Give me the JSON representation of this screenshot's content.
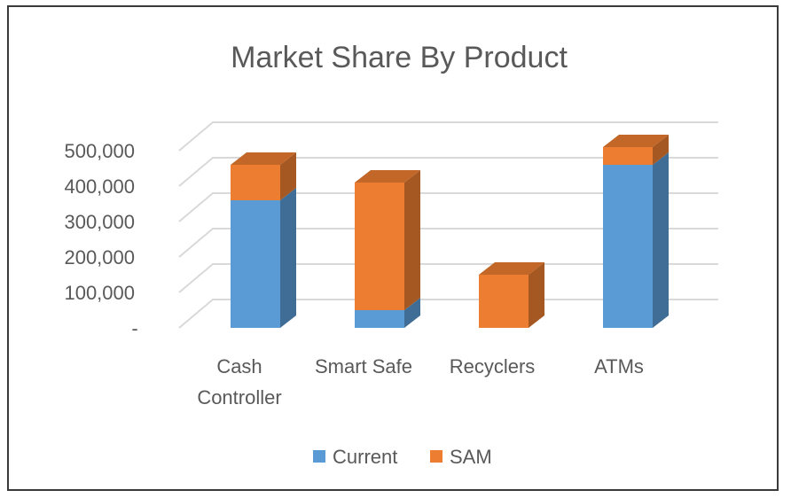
{
  "chart_data": {
    "type": "bar",
    "stacked": true,
    "three_d": true,
    "title": "Market Share By Product",
    "xlabel": "",
    "ylabel": "",
    "categories": [
      [
        "Cash",
        "Controller"
      ],
      [
        "Smart Safe"
      ],
      [
        "Recyclers"
      ],
      [
        "ATMs"
      ]
    ],
    "series": [
      {
        "name": "Current",
        "color": "#5b9bd5",
        "values": [
          360000,
          50000,
          0,
          460000
        ]
      },
      {
        "name": "SAM",
        "color": "#ed7d31",
        "values": [
          100000,
          360000,
          150000,
          50000
        ]
      }
    ],
    "ylim": [
      0,
      500000
    ],
    "yticks": [
      0,
      100000,
      200000,
      300000,
      400000,
      500000
    ],
    "ytick_labels": [
      "-",
      "100,000",
      "200,000",
      "300,000",
      "400,000",
      "500,000"
    ],
    "grid": true,
    "legend_position": "bottom"
  }
}
